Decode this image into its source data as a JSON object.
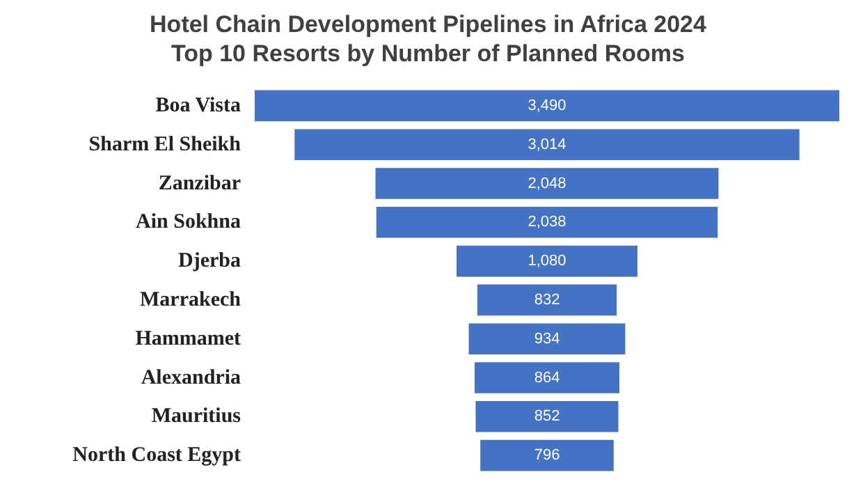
{
  "chart_data": {
    "type": "other",
    "title": "Hotel Chain Development Pipelines in Africa 2024",
    "subtitle": "Top 10 Resorts by Number of Planned Rooms",
    "categories": [
      "Boa Vista",
      "Sharm El Sheikh",
      "Zanzibar",
      "Ain Sokhna",
      "Djerba",
      "Marrakech",
      "Hammamet",
      "Alexandria",
      "Mauritius",
      "North Coast Egypt"
    ],
    "values": [
      3490,
      3014,
      2048,
      2038,
      1080,
      832,
      934,
      864,
      852,
      796
    ],
    "value_labels": [
      "3,490",
      "3,014",
      "2,048",
      "2,038",
      "1,080",
      "832",
      "934",
      "864",
      "852",
      "796"
    ],
    "color": "#4472c4"
  }
}
